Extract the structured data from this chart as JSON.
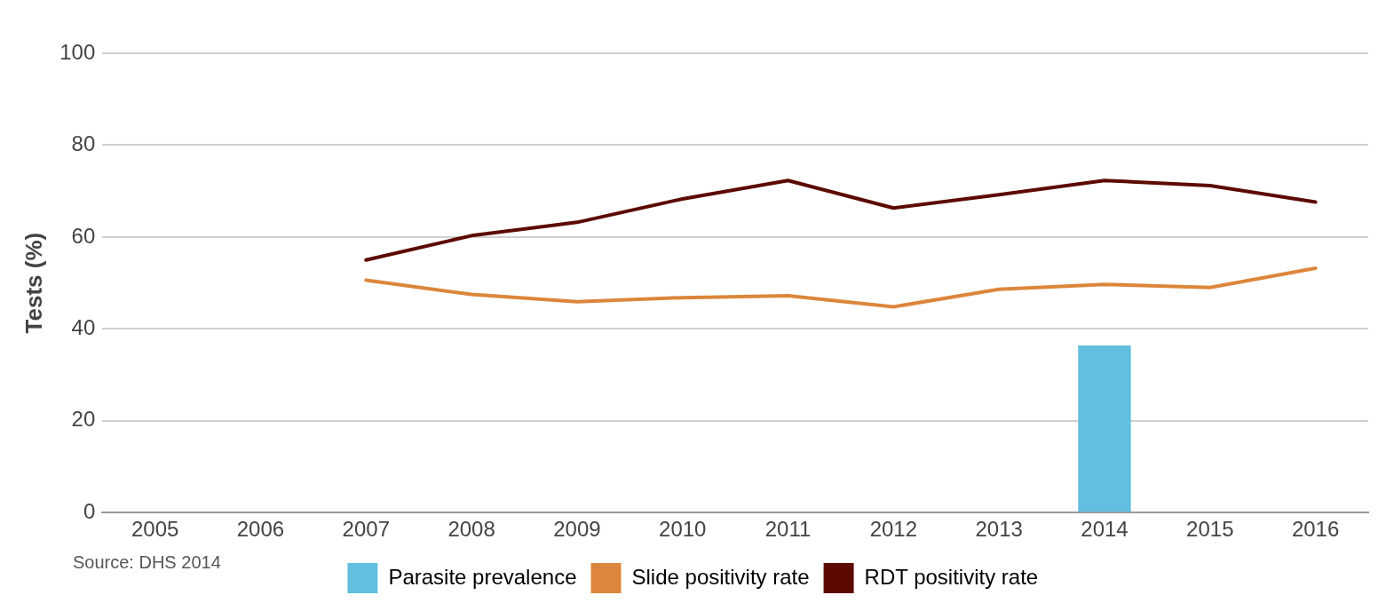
{
  "chart_data": {
    "type": "line",
    "ylabel": "Tests (%)",
    "categories": [
      "2005",
      "2006",
      "2007",
      "2008",
      "2009",
      "2010",
      "2011",
      "2012",
      "2013",
      "2014",
      "2015",
      "2016"
    ],
    "series": [
      {
        "name": "Parasite prevalence",
        "type": "bar",
        "color": "#62bfe0",
        "values": [
          null,
          null,
          null,
          null,
          null,
          null,
          null,
          null,
          null,
          36.4,
          null,
          null
        ]
      },
      {
        "name": "Slide positivity rate",
        "color": "#dc863b",
        "values": [
          null,
          null,
          50.6,
          47.5,
          45.9,
          46.8,
          47.2,
          44.8,
          48.6,
          49.7,
          49,
          53.2
        ]
      },
      {
        "name": "RDT positivity rate",
        "color": "#5c0a00",
        "values": [
          null,
          null,
          55,
          60.3,
          63.2,
          68.3,
          72.3,
          66.3,
          69.2,
          72.3,
          71.2,
          67.6
        ]
      }
    ],
    "ylim": [
      0,
      100
    ],
    "yticks": [
      0,
      20,
      40,
      60,
      80,
      100
    ],
    "grid": "y",
    "legend": "bottom",
    "marker": "none",
    "line_style": "solid",
    "annotations": [
      "Source: DHS 2014"
    ]
  }
}
